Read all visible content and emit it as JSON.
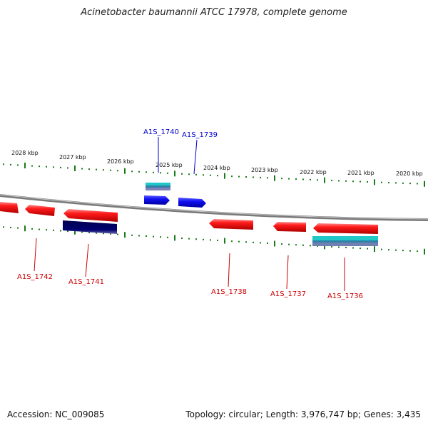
{
  "title": "Acinetobacter baumannii ATCC 17978, complete genome",
  "footer": {
    "accession": "Accession: NC_009085",
    "summary": "Topology: circular; Length: 3,976,747 bp; Genes: 3,435"
  },
  "kbp_labels": [
    "2028 kbp",
    "2027 kbp",
    "2026 kbp",
    "2025 kbp",
    "2024 kbp",
    "2023 kbp",
    "2022 kbp",
    "2021 kbp",
    "2020 kbp"
  ],
  "gene_labels": {
    "top": [
      "A1S_1740",
      "A1S_1739"
    ],
    "bottom": [
      "A1S_1742",
      "A1S_1741",
      "A1S_1738",
      "A1S_1737",
      "A1S_1736"
    ]
  },
  "colors": {
    "forward_gene": "#0000ee",
    "reverse_gene": "#ee0000",
    "navy_feature": "#000066",
    "cyan_feature": "#20c8c8",
    "tick": "#1a7a1a",
    "backbone": "#888888"
  }
}
